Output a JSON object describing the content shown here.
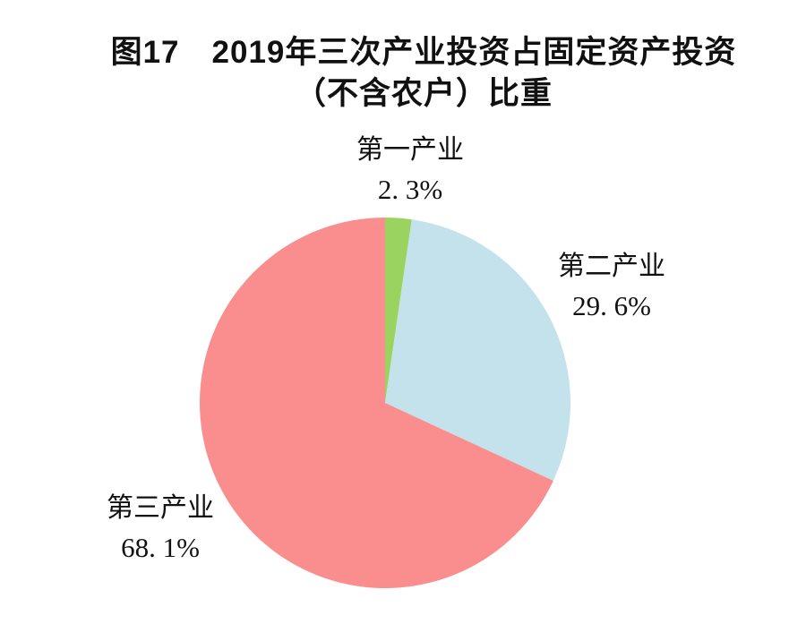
{
  "title": {
    "line1": "图17　2019年三次产业投资占固定资产投资",
    "line2": "（不含农户）比重"
  },
  "chart_data": {
    "type": "pie",
    "title": "图17 2019年三次产业投资占固定资产投资（不含农户）比重",
    "labels": [
      "第一产业",
      "第二产业",
      "第三产业"
    ],
    "values": [
      2.3,
      29.6,
      68.1
    ],
    "unit": "%",
    "display_values": [
      "2. 3%",
      "29. 6%",
      "68. 1%"
    ],
    "colors": [
      "#9bd360",
      "#c3e2ec",
      "#fa8e8e"
    ],
    "start_angle": "12-oclock",
    "direction": "clockwise",
    "legend_position": "none (text labels placed around pie)",
    "background": "#ffffff",
    "text_color": "#111111"
  }
}
